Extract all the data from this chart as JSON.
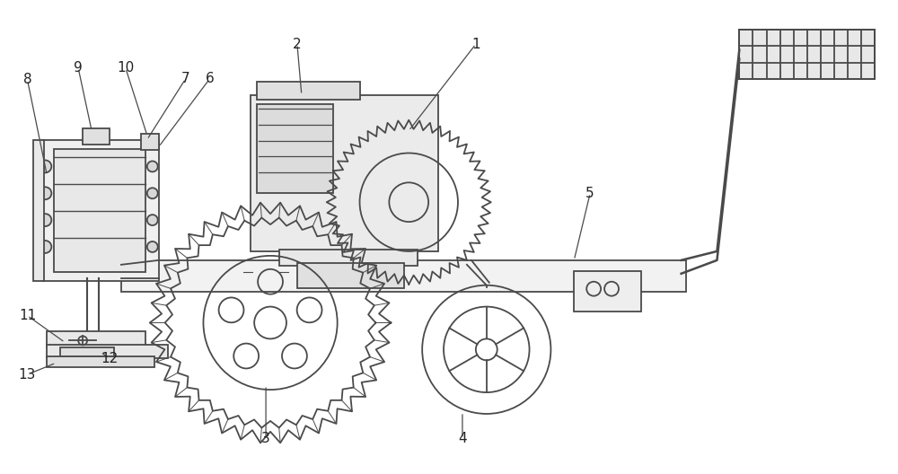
{
  "bg_color": "#ffffff",
  "line_color": "#4a4a4a",
  "line_width": 1.3,
  "figsize": [
    10.0,
    5.28
  ],
  "dpi": 100,
  "label_fontsize": 11,
  "label_color": "#222222"
}
